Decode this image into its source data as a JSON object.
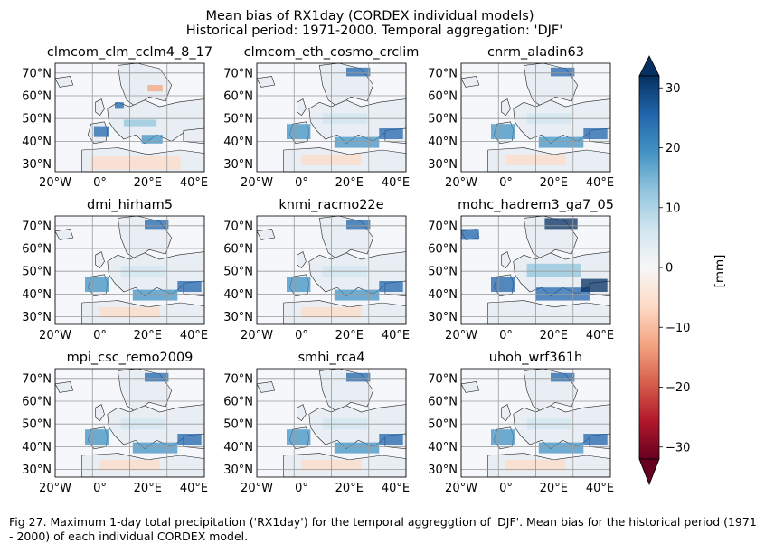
{
  "title_line1": "Mean bias of RX1day (CORDEX individual models)",
  "title_line2": "Historical period: 1971-2000. Temporal aggregation: 'DJF'",
  "panels": [
    {
      "name": "clmcom_clm_cclm4_8_17",
      "pattern": "mixed"
    },
    {
      "name": "clmcom_eth_cosmo_crclim",
      "pattern": "wet"
    },
    {
      "name": "cnrm_aladin63",
      "pattern": "wet"
    },
    {
      "name": "dmi_hirham5",
      "pattern": "wet"
    },
    {
      "name": "knmi_racmo22e",
      "pattern": "wet"
    },
    {
      "name": "mohc_hadrem3_ga7_05",
      "pattern": "very-wet"
    },
    {
      "name": "mpi_csc_remo2009",
      "pattern": "wet"
    },
    {
      "name": "smhi_rca4",
      "pattern": "wet"
    },
    {
      "name": "uhoh_wrf361h",
      "pattern": "wet"
    }
  ],
  "lat_ticks": [
    "70°N",
    "60°N",
    "50°N",
    "40°N",
    "30°N"
  ],
  "lon_ticks": [
    "20°W",
    "0°",
    "20°E",
    "40°E"
  ],
  "colorbar": {
    "label": "[mm]",
    "ticks": [
      "30",
      "20",
      "10",
      "0",
      "−10",
      "−20",
      "−30"
    ],
    "colormap": "RdBu",
    "min": -32,
    "max": 32,
    "extend": "both",
    "colors": [
      "#67001f",
      "#b2182b",
      "#d6604d",
      "#f4a582",
      "#fddbc7",
      "#f7f7f7",
      "#d1e5f0",
      "#92c5de",
      "#4393c3",
      "#2166ac",
      "#053061"
    ]
  },
  "caption": "Fig 27. Maximum 1-day total precipitation ('RX1day') for the temporal aggreggtion of 'DJF'. Mean bias for the historical period (1971 - 2000) of each individual CORDEX model."
}
